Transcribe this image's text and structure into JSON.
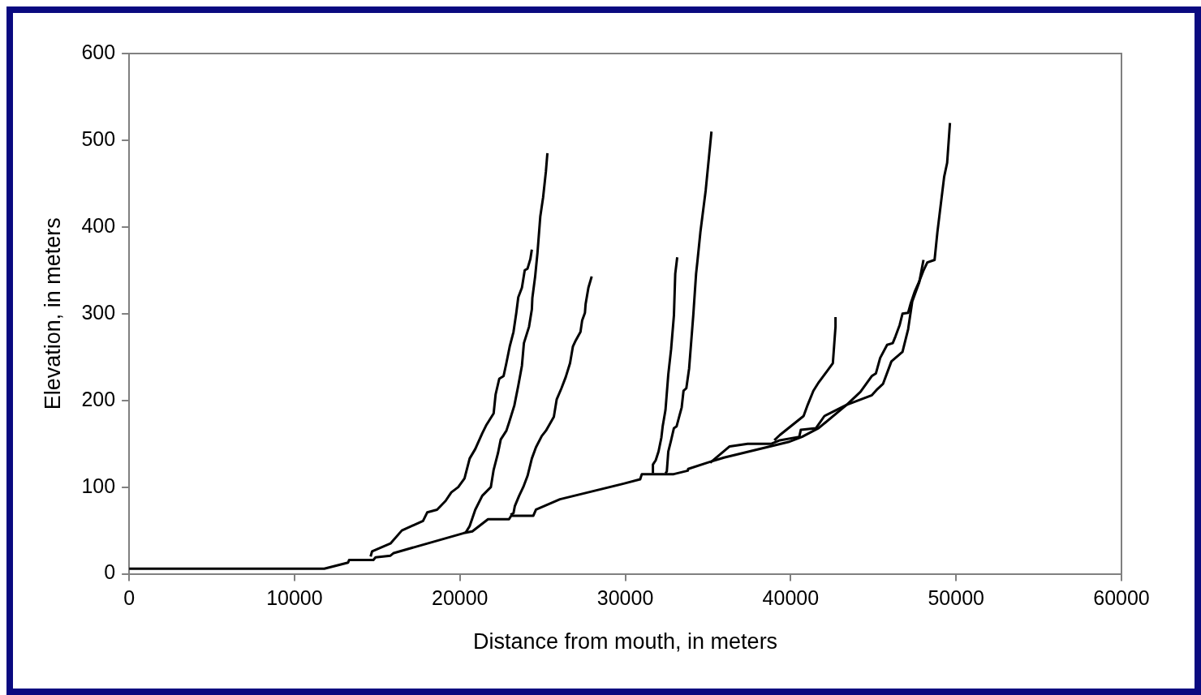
{
  "chart_data": {
    "type": "line",
    "xlabel": "Distance from mouth, in meters",
    "ylabel": "Elevation, in meters",
    "xlim": [
      0,
      60000
    ],
    "xticks": [
      0,
      10000,
      20000,
      30000,
      40000,
      50000,
      60000
    ],
    "ylim": [
      0,
      600
    ],
    "yticks": [
      0,
      100,
      200,
      300,
      400,
      500,
      600
    ],
    "grid": false,
    "legend": false,
    "marker": "none",
    "line_style": "solid",
    "series": [
      {
        "color": "#000000",
        "x": [
          0,
          11800,
          13240,
          13300,
          14770,
          14900,
          15800,
          16000,
          20240,
          20750,
          21700,
          22970,
          23100,
          24440,
          24600,
          26050,
          29900,
          30900,
          31000,
          32930,
          33780,
          33800,
          35100,
          35970,
          39860,
          40690,
          41690,
          43390,
          44220,
          44900,
          45150,
          45410,
          45830,
          46170,
          46340,
          46590,
          46760,
          47100,
          47260,
          47510,
          47770,
          48010,
          48260,
          48700,
          48870,
          49280,
          49460,
          49630
        ],
        "values": [
          6,
          6,
          13,
          16,
          16,
          19,
          21,
          24,
          47,
          49,
          63,
          63,
          67,
          67,
          74,
          86,
          104,
          109,
          115,
          115,
          119,
          121,
          129,
          134,
          152,
          158,
          168,
          195,
          210,
          228,
          231,
          249,
          264,
          266,
          274,
          287,
          300,
          301,
          312,
          326,
          337,
          349,
          359,
          362,
          394,
          458,
          474,
          520
        ]
      },
      {
        "color": "#000000",
        "x": [
          14600,
          14690,
          15800,
          16490,
          17770,
          18030,
          18620,
          19130,
          19480,
          19900,
          20280,
          20590,
          20930,
          21350,
          21610,
          22040,
          22160,
          22380,
          22640,
          22810,
          23010,
          23240,
          23410,
          23530,
          23750,
          23920,
          24090,
          24260,
          24350
        ],
        "values": [
          20,
          26,
          35,
          50,
          61,
          71,
          74,
          84,
          94,
          100,
          110,
          133,
          144,
          162,
          172,
          185,
          207,
          225,
          228,
          243,
          262,
          279,
          301,
          319,
          330,
          350,
          352,
          363,
          374
        ]
      },
      {
        "color": "#000000",
        "x": [
          20330,
          20590,
          20930,
          21350,
          21870,
          22040,
          22300,
          22470,
          22810,
          22980,
          23290,
          23530,
          23750,
          23870,
          24180,
          24350,
          24380,
          24550,
          24690,
          24820,
          24860,
          25030,
          25200,
          25290
        ],
        "values": [
          47,
          55,
          74,
          90,
          100,
          120,
          139,
          155,
          165,
          175,
          194,
          217,
          240,
          266,
          285,
          305,
          318,
          343,
          370,
          402,
          412,
          434,
          464,
          485
        ]
      },
      {
        "color": "#000000",
        "x": [
          23060,
          23240,
          23320,
          23580,
          23830,
          24090,
          24350,
          24600,
          24950,
          25200,
          25680,
          25850,
          26140,
          26400,
          26660,
          26830,
          27000,
          27290,
          27390,
          27560,
          27600,
          27770,
          27970
        ],
        "values": [
          68,
          70,
          78,
          90,
          100,
          113,
          133,
          146,
          159,
          165,
          181,
          201,
          214,
          227,
          243,
          262,
          269,
          279,
          292,
          301,
          311,
          330,
          343
        ]
      },
      {
        "color": "#000000",
        "x": [
          31670,
          31670,
          31840,
          32010,
          32180,
          32260,
          32430,
          32600,
          32770,
          32940,
          33020,
          33140
        ],
        "values": [
          116,
          126,
          131,
          141,
          157,
          170,
          189,
          230,
          259,
          298,
          346,
          365
        ]
      },
      {
        "color": "#000000",
        "x": [
          32430,
          32510,
          32600,
          32770,
          32940,
          33100,
          33270,
          33410,
          33520,
          33690,
          33860,
          33950,
          34110,
          34280,
          34370,
          34540,
          34860,
          35210
        ],
        "values": [
          116,
          118,
          141,
          154,
          168,
          170,
          182,
          192,
          211,
          214,
          237,
          259,
          298,
          346,
          362,
          394,
          442,
          510
        ]
      },
      {
        "color": "#000000",
        "x": [
          35130,
          36310,
          37400,
          38840,
          39340,
          40520,
          40610,
          41530,
          42040,
          43390,
          44910,
          45240,
          45580,
          46090,
          46760,
          47100,
          47350,
          47770,
          48030
        ],
        "values": [
          128,
          147,
          150,
          150,
          154,
          158,
          166,
          168,
          182,
          195,
          206,
          213,
          219,
          245,
          256,
          282,
          314,
          336,
          362
        ]
      },
      {
        "color": "#000000",
        "x": [
          39010,
          39340,
          40780,
          41030,
          41370,
          41700,
          42210,
          42550,
          42710,
          42710
        ],
        "values": [
          154,
          160,
          182,
          195,
          211,
          221,
          234,
          243,
          285,
          296
        ]
      }
    ]
  }
}
